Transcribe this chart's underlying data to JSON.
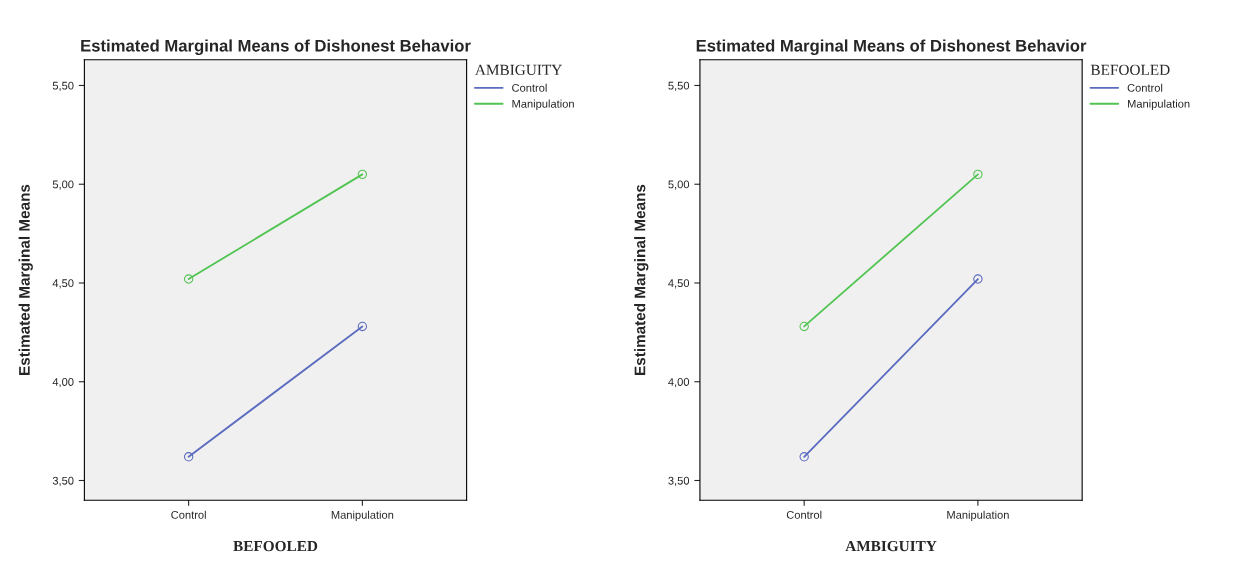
{
  "chart_data": [
    {
      "type": "line",
      "title": "Estimated Marginal Means of Dishonest Behavior",
      "xlabel": "BEFOOLED",
      "ylabel": "Estimated Marginal Means",
      "legend_title": "AMBIGUITY",
      "categories": [
        "Control",
        "Manipulation"
      ],
      "series": [
        {
          "name": "Control",
          "color": "#5b6bbf",
          "values": [
            3.62,
            4.28
          ]
        },
        {
          "name": "Manipulation",
          "color": "#52c452",
          "values": [
            4.52,
            5.05
          ]
        }
      ],
      "ylim": [
        3.4,
        5.63
      ],
      "yticks": [
        {
          "value": 3.5,
          "label": "3,50"
        },
        {
          "value": 4.0,
          "label": "4,00"
        },
        {
          "value": 4.5,
          "label": "4,50"
        },
        {
          "value": 5.0,
          "label": "5,00"
        },
        {
          "value": 5.5,
          "label": "5,50"
        }
      ],
      "marker": "circle",
      "grid": false,
      "legend": "right"
    },
    {
      "type": "line",
      "title": "Estimated Marginal Means of Dishonest Behavior",
      "xlabel": "AMBIGUITY",
      "ylabel": "Estimated Marginal Means",
      "legend_title": "BEFOOLED",
      "categories": [
        "Control",
        "Manipulation"
      ],
      "series": [
        {
          "name": "Control",
          "color": "#5b6bbf",
          "values": [
            3.62,
            4.52
          ]
        },
        {
          "name": "Manipulation",
          "color": "#52c452",
          "values": [
            4.28,
            5.05
          ]
        }
      ],
      "ylim": [
        3.4,
        5.63
      ],
      "yticks": [
        {
          "value": 3.5,
          "label": "3,50"
        },
        {
          "value": 4.0,
          "label": "4,00"
        },
        {
          "value": 4.5,
          "label": "4,50"
        },
        {
          "value": 5.0,
          "label": "5,00"
        },
        {
          "value": 5.5,
          "label": "5,50"
        }
      ],
      "marker": "circle",
      "grid": false,
      "legend": "right"
    }
  ]
}
